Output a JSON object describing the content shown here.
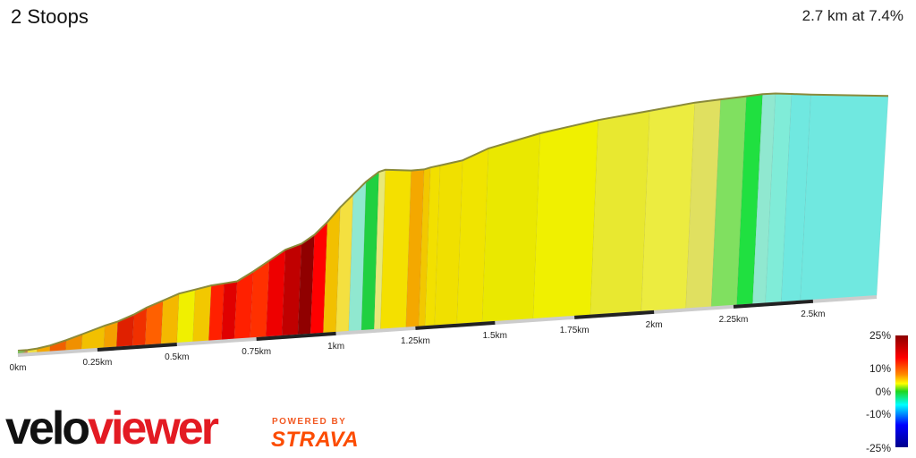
{
  "segment": {
    "name": "2 Stoops",
    "summary": "2.7 km at 7.4%"
  },
  "branding": {
    "veloviewer": "veloviewer",
    "powered_by": "POWERED BY",
    "strava": "STRAVA"
  },
  "legend": {
    "labels": [
      "25%",
      "10%",
      "0%",
      "-10%",
      "-25%"
    ],
    "colors": [
      "#8b0000",
      "#ff0000",
      "#ff8c00",
      "#ffff00",
      "#1fd61f",
      "#00ffff",
      "#00008b"
    ]
  },
  "chart_data": {
    "type": "area",
    "title": "2 Stoops",
    "xlabel": "",
    "ylabel": "",
    "x_unit": "km",
    "xlim": [
      0,
      2.7
    ],
    "x_ticks": [
      "0km",
      "0.25km",
      "0.5km",
      "0.75km",
      "1km",
      "1.25km",
      "1.5km",
      "1.75km",
      "2km",
      "2.25km",
      "2.5km"
    ],
    "x_tick_values": [
      0,
      0.25,
      0.5,
      0.75,
      1.0,
      1.25,
      1.5,
      1.75,
      2.0,
      2.25,
      2.5
    ],
    "distance_km": [
      0,
      0.03,
      0.06,
      0.1,
      0.15,
      0.2,
      0.27,
      0.31,
      0.36,
      0.4,
      0.45,
      0.5,
      0.55,
      0.6,
      0.64,
      0.68,
      0.73,
      0.78,
      0.83,
      0.88,
      0.92,
      0.96,
      1.0,
      1.04,
      1.08,
      1.12,
      1.14,
      1.22,
      1.26,
      1.28,
      1.31,
      1.38,
      1.46,
      1.62,
      1.8,
      1.96,
      2.1,
      2.18,
      2.26,
      2.31,
      2.35,
      2.4,
      2.46,
      2.7
    ],
    "elevation_m": [
      0,
      0.3,
      1.0,
      2.5,
      5.2,
      8.2,
      12.5,
      14.5,
      18.0,
      21.5,
      25.0,
      28.5,
      30.5,
      32.5,
      33.5,
      34.5,
      39.5,
      45.0,
      50.5,
      53.5,
      58.0,
      64.5,
      72.0,
      78.5,
      85.0,
      90.0,
      91.0,
      90.5,
      91.0,
      92.0,
      93.0,
      95.5,
      101.5,
      109.0,
      115.5,
      120.0,
      124.0,
      125.5,
      127.0,
      128.0,
      128.3,
      128.0,
      127.5,
      126.5
    ],
    "gradient_colors": [
      "#d07848",
      "#f0e040",
      "#f4a800",
      "#f06000",
      "#f09000",
      "#f2c000",
      "#f4a000",
      "#e02000",
      "#f03000",
      "#ff6000",
      "#f4b800",
      "#f0f000",
      "#f2c800",
      "#ff2000",
      "#e00000",
      "#ff2000",
      "#ff3000",
      "#ee0000",
      "#c00000",
      "#900000",
      "#ff0000",
      "#f2c000",
      "#f4e040",
      "#90e8d0",
      "#20d040",
      "#e8e878",
      "#f4e000",
      "#f4a800",
      "#f2c800",
      "#f2e000",
      "#f0e000",
      "#f0e400",
      "#eae800",
      "#f0f000",
      "#e8e830",
      "#ecec40",
      "#e0e060",
      "#80e060",
      "#20e040",
      "#90e8d0",
      "#80ecd8",
      "#70e8e0",
      "#70e8e0"
    ]
  }
}
